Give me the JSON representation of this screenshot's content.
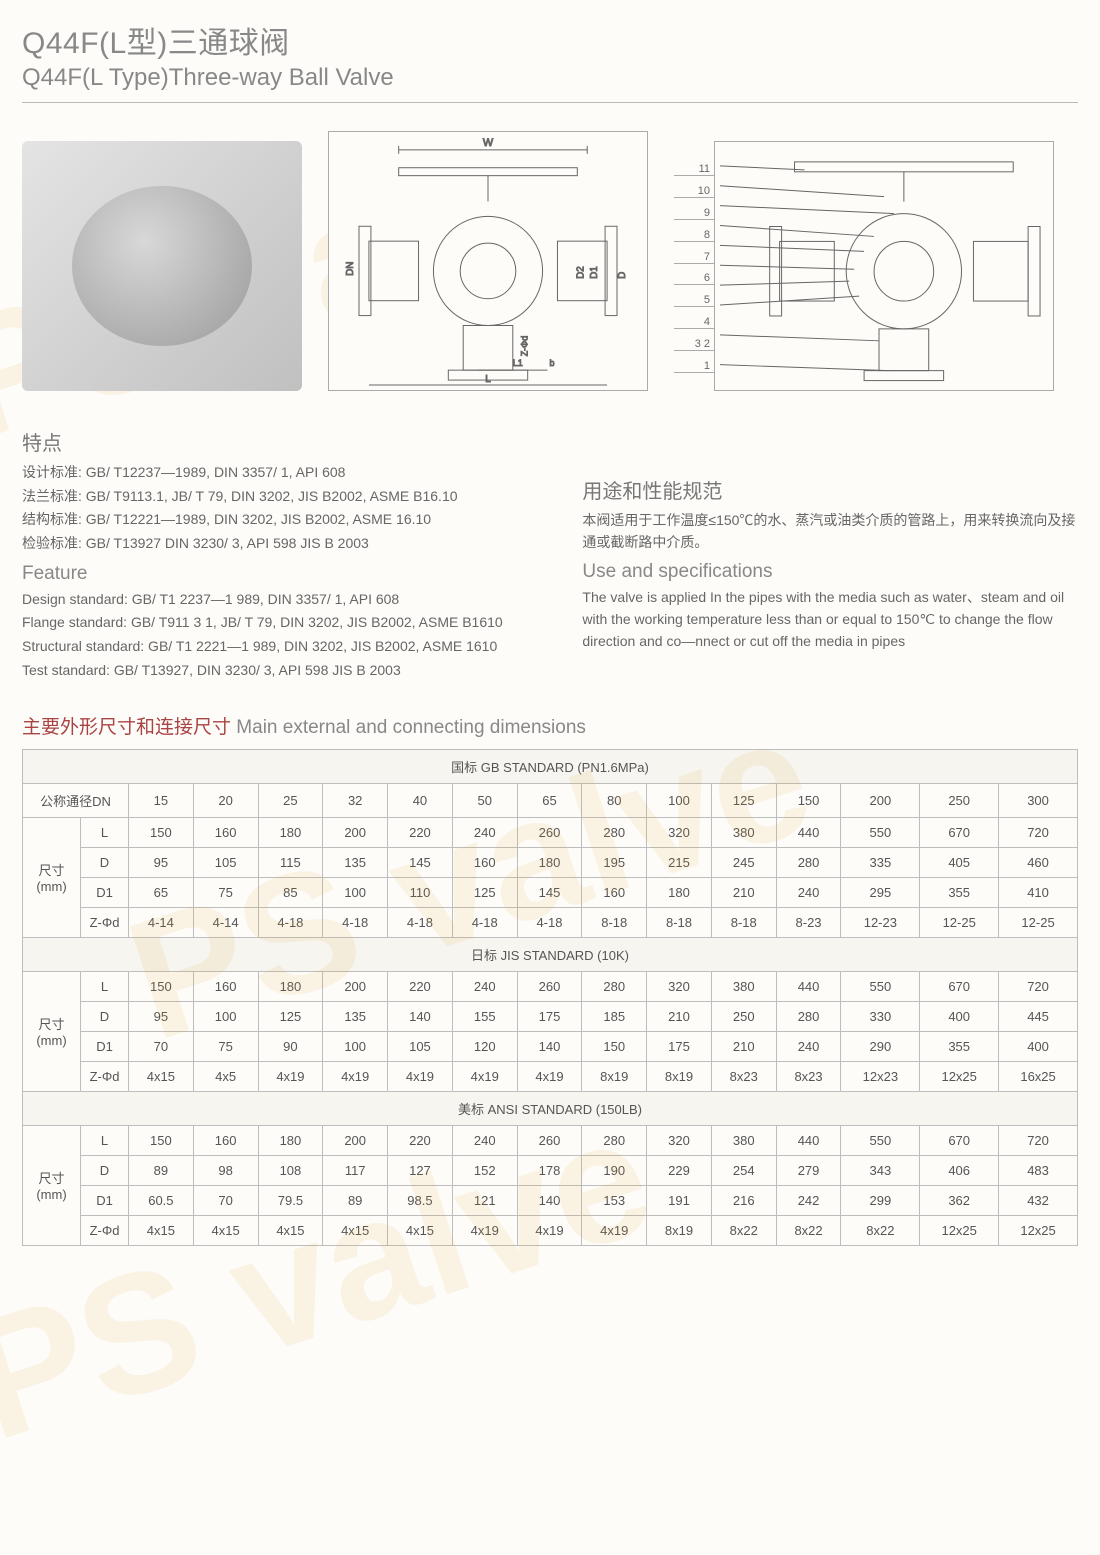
{
  "title": {
    "cn": "Q44F(L型)三通球阀",
    "en": "Q44F(L Type)Three-way Ball Valve"
  },
  "diagram": {
    "dim_labels": [
      "W",
      "DN",
      "D2",
      "D1",
      "D",
      "Z-Φd",
      "L1",
      "b",
      "L"
    ],
    "callout_numbers": [
      "11",
      "10",
      "9",
      "8",
      "7",
      "6",
      "5",
      "4",
      "3  2",
      "1"
    ]
  },
  "features": {
    "heading_cn": "特点",
    "heading_en": "Feature",
    "cn_lines": [
      "设计标准: GB/ T12237—1989, DIN 3357/ 1, API 608",
      "法兰标准: GB/ T9113.1, JB/ T 79, DIN 3202, JIS B2002, ASME B16.10",
      "结构标准: GB/ T12221—1989, DIN 3202, JIS B2002, ASME 16.10",
      "检验标准: GB/ T13927  DIN 3230/ 3, API 598 JIS B 2003"
    ],
    "en_lines": [
      "Design standard: GB/ T1 2237—1 989, DIN 3357/ 1, API 608",
      "Flange standard: GB/ T911 3 1, JB/ T 79, DIN 3202, JIS B2002, ASME B1610",
      "Structural standard: GB/ T1 2221—1 989, DIN 3202,  JIS B2002, ASME 1610",
      "Test standard: GB/ T13927, DIN 3230/ 3, API 598 JIS B 2003"
    ]
  },
  "usage": {
    "heading_cn": "用途和性能规范",
    "body_cn": "本阀适用于工作温度≤150℃的水、蒸汽或油类介质的管路上，用来转换流向及接通或截断路中介质。",
    "heading_en": "Use and specifications",
    "body_en": "The valve is applied In the pipes with the media such as water、steam and oil with the working temperature less than or equal to 150℃ to change the flow direction and co—nnect or cut off the media in pipes"
  },
  "table": {
    "heading_cn": "主要外形尺寸和连接尺寸",
    "heading_en": "Main external and connecting dimensions",
    "dn_label": "公称通径DN",
    "size_label": "尺寸\n(mm)",
    "dn_values": [
      "15",
      "20",
      "25",
      "32",
      "40",
      "50",
      "65",
      "80",
      "100",
      "125",
      "150",
      "200",
      "250",
      "300"
    ],
    "row_labels": [
      "L",
      "D",
      "D1",
      "Z-Φd"
    ],
    "sections": [
      {
        "title": "国标 GB STANDARD (PN1.6MPa)",
        "rows": [
          [
            "150",
            "160",
            "180",
            "200",
            "220",
            "240",
            "260",
            "280",
            "320",
            "380",
            "440",
            "550",
            "670",
            "720"
          ],
          [
            "95",
            "105",
            "115",
            "135",
            "145",
            "160",
            "180",
            "195",
            "215",
            "245",
            "280",
            "335",
            "405",
            "460"
          ],
          [
            "65",
            "75",
            "85",
            "100",
            "110",
            "125",
            "145",
            "160",
            "180",
            "210",
            "240",
            "295",
            "355",
            "410"
          ],
          [
            "4-14",
            "4-14",
            "4-18",
            "4-18",
            "4-18",
            "4-18",
            "4-18",
            "8-18",
            "8-18",
            "8-18",
            "8-23",
            "12-23",
            "12-25",
            "12-25"
          ]
        ]
      },
      {
        "title": "日标 JIS STANDARD (10K)",
        "rows": [
          [
            "150",
            "160",
            "180",
            "200",
            "220",
            "240",
            "260",
            "280",
            "320",
            "380",
            "440",
            "550",
            "670",
            "720"
          ],
          [
            "95",
            "100",
            "125",
            "135",
            "140",
            "155",
            "175",
            "185",
            "210",
            "250",
            "280",
            "330",
            "400",
            "445"
          ],
          [
            "70",
            "75",
            "90",
            "100",
            "105",
            "120",
            "140",
            "150",
            "175",
            "210",
            "240",
            "290",
            "355",
            "400"
          ],
          [
            "4x15",
            "4x5",
            "4x19",
            "4x19",
            "4x19",
            "4x19",
            "4x19",
            "8x19",
            "8x19",
            "8x23",
            "8x23",
            "12x23",
            "12x25",
            "16x25"
          ]
        ]
      },
      {
        "title": "美标 ANSI STANDARD (150LB)",
        "rows": [
          [
            "150",
            "160",
            "180",
            "200",
            "220",
            "240",
            "260",
            "280",
            "320",
            "380",
            "440",
            "550",
            "670",
            "720"
          ],
          [
            "89",
            "98",
            "108",
            "117",
            "127",
            "152",
            "178",
            "190",
            "229",
            "254",
            "279",
            "343",
            "406",
            "483"
          ],
          [
            "60.5",
            "70",
            "79.5",
            "89",
            "98.5",
            "121",
            "140",
            "153",
            "191",
            "216",
            "242",
            "299",
            "362",
            "432"
          ],
          [
            "4x15",
            "4x15",
            "4x15",
            "4x15",
            "4x15",
            "4x19",
            "4x19",
            "4x19",
            "8x19",
            "8x22",
            "8x22",
            "8x22",
            "12x25",
            "12x25"
          ]
        ]
      }
    ]
  },
  "colors": {
    "heading": "#888888",
    "section_red": "#a44444",
    "text": "#666666",
    "border": "#bdbdbd",
    "background": "#fdfcf9"
  }
}
